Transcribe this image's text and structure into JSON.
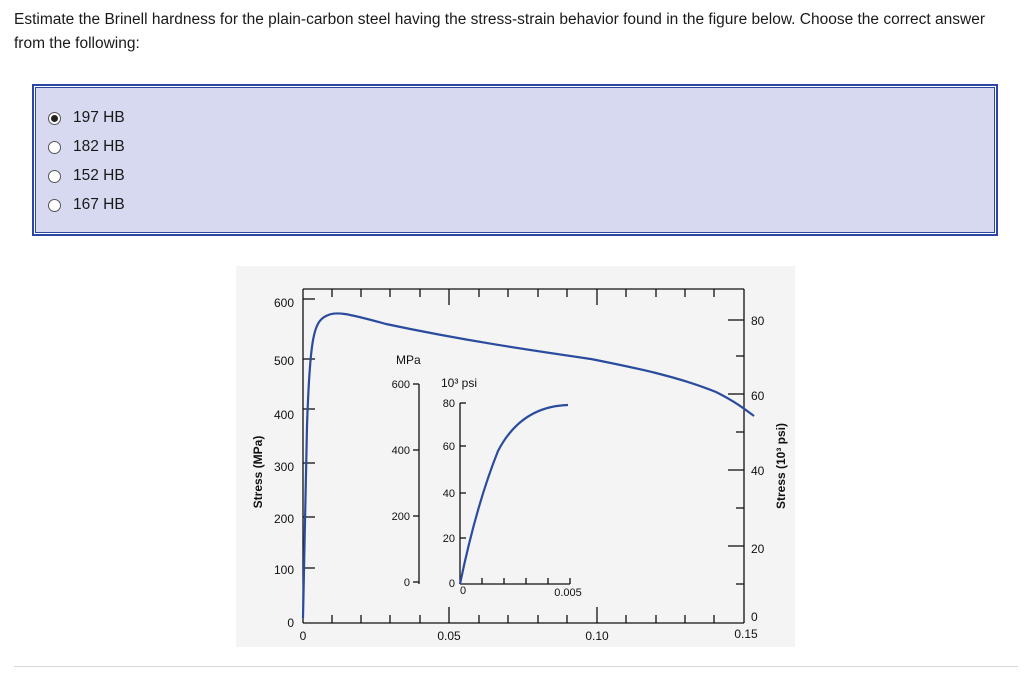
{
  "question": {
    "text": "Estimate the Brinell hardness for the plain-carbon steel having the stress-strain behavior found in the figure below. Choose the correct answer from the following:"
  },
  "options": [
    {
      "label": "197 HB",
      "selected": true
    },
    {
      "label": "182 HB",
      "selected": false
    },
    {
      "label": "152 HB",
      "selected": false
    },
    {
      "label": "167 HB",
      "selected": false
    }
  ],
  "figure": {
    "left_axis_label": "Stress (MPa)",
    "right_axis_label": "Stress (10³ psi)",
    "left_ticks": [
      "600",
      "500",
      "400",
      "300",
      "200",
      "100",
      "0"
    ],
    "right_ticks": [
      "80",
      "60",
      "40",
      "20",
      "0"
    ],
    "bottom_ticks": [
      "0",
      "0.05",
      "0.10",
      "0.15"
    ],
    "inset": {
      "unit_mpa": "MPa",
      "unit_psi": "10³ psi",
      "mpa_ticks": [
        "600",
        "400",
        "200",
        "0"
      ],
      "psi_ticks": [
        "80",
        "60",
        "40",
        "20",
        "0"
      ],
      "x_ticks": [
        "0",
        "0.005"
      ]
    }
  },
  "colors": {
    "box_fill": "#d6d9ef",
    "box_border": "#2c46a8",
    "curve": "#2b4b9e"
  }
}
